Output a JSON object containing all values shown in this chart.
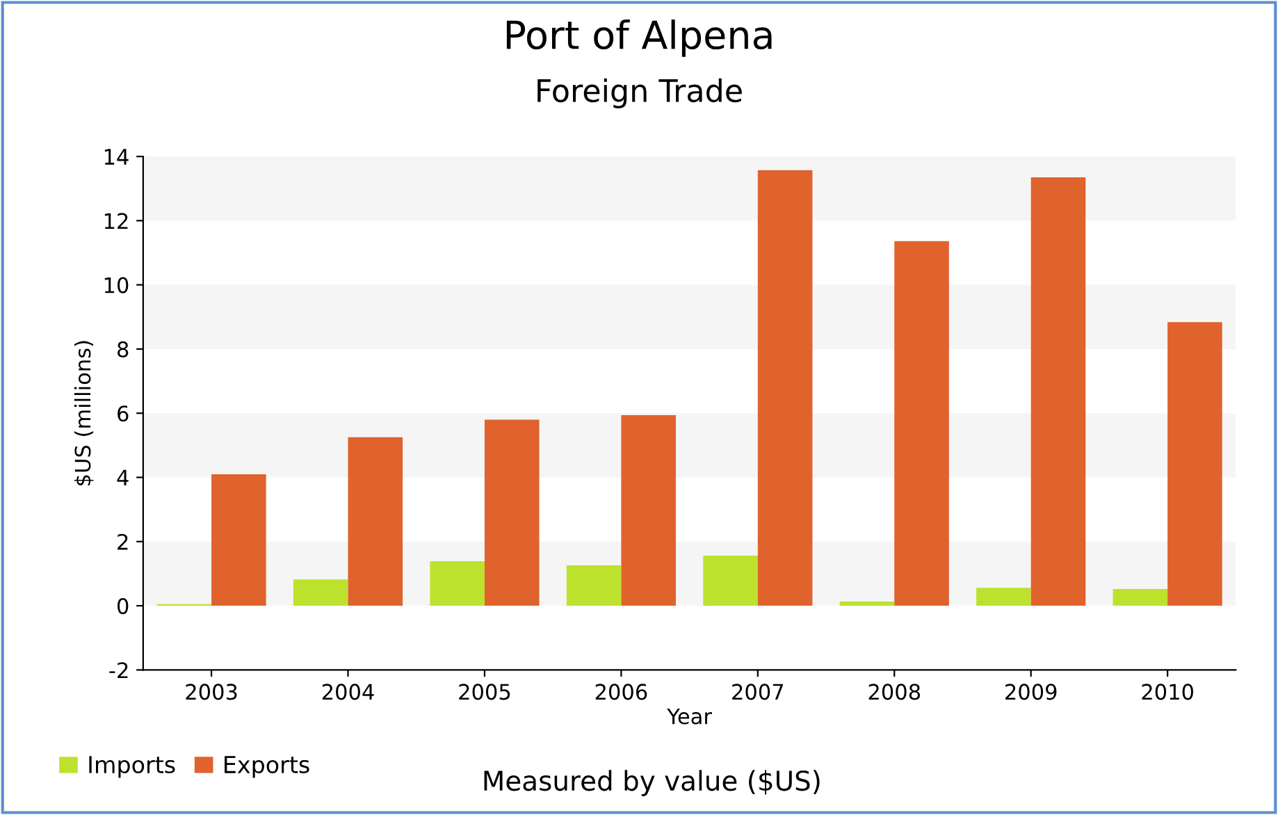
{
  "chart_data": {
    "type": "bar",
    "title": "Port of Alpena",
    "subtitle": "Foreign Trade",
    "xlabel": "Year",
    "ylabel": "$US (millions)",
    "categories": [
      "2003",
      "2004",
      "2005",
      "2006",
      "2007",
      "2008",
      "2009",
      "2010"
    ],
    "series": [
      {
        "name": "Imports",
        "color": "#bde22e",
        "values": [
          0.05,
          0.82,
          1.39,
          1.26,
          1.56,
          0.13,
          0.56,
          0.52
        ]
      },
      {
        "name": "Exports",
        "color": "#e0622c",
        "values": [
          4.1,
          5.25,
          5.8,
          5.94,
          13.57,
          11.36,
          13.35,
          8.84
        ]
      }
    ],
    "ylim": [
      -2,
      14
    ],
    "yticks": [
      -2,
      0,
      2,
      4,
      6,
      8,
      10,
      12,
      14
    ],
    "legend": "bottom left",
    "annotations": [
      "Measured by value ($US)"
    ]
  }
}
